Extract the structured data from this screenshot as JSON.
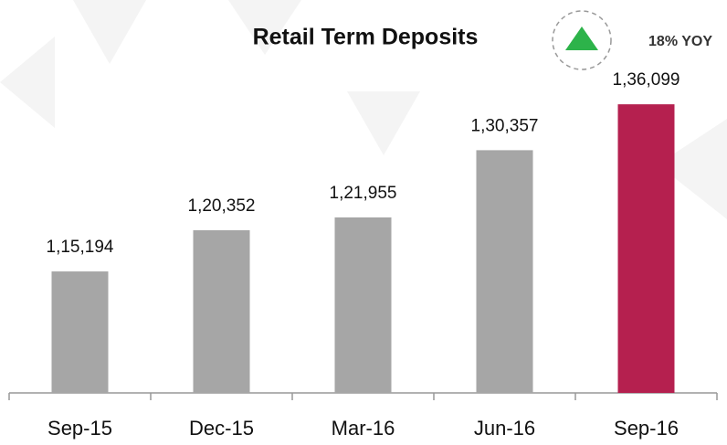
{
  "chart_data": {
    "type": "bar",
    "title": "Retail Term Deposits",
    "annotation": "18% YOY",
    "categories": [
      "Sep-15",
      "Dec-15",
      "Mar-16",
      "Jun-16",
      "Sep-16"
    ],
    "values": [
      115194,
      120352,
      121955,
      130357,
      136099
    ],
    "value_labels": [
      "1,15,194",
      "1,20,352",
      "1,21,955",
      "1,30,357",
      "1,36,099"
    ],
    "colors": [
      "#a6a6a6",
      "#a6a6a6",
      "#a6a6a6",
      "#a6a6a6",
      "#b5204f"
    ],
    "ylim": [
      100000,
      140000
    ]
  }
}
